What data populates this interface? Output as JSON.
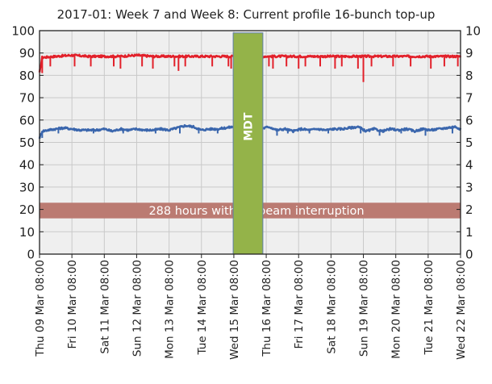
{
  "chart_data": {
    "type": "line",
    "title": "2017-01: Week 7 and Week 8: Current profile 16-bunch top-up",
    "y_left": {
      "range": [
        0,
        100
      ],
      "ticks": [
        "0",
        "10",
        "20",
        "30",
        "40",
        "50",
        "60",
        "70",
        "80",
        "90",
        "100"
      ]
    },
    "y_right": {
      "range": [
        0,
        10
      ],
      "ticks": [
        "0",
        "1",
        "2",
        "3",
        "4",
        "5",
        "6",
        "7",
        "8",
        "9",
        "10"
      ]
    },
    "x": {
      "unit": "hours",
      "range": [
        0,
        312
      ],
      "tick_labels": [
        "Thu 09 Mar 08:00",
        "Fri 10 Mar 08:00",
        "Sat 11  Mar 08:00",
        "Sun 12  Mar 08:00",
        "Mon 13  Mar 08:00",
        "Tue 14  Mar 08:00",
        "Wed 15 Mar 08:00",
        "Thu 16 Mar 08:00",
        "Fri 17 Mar 08:00",
        "Sat 18 Mar 08:00",
        "Sun 19 Mar 08:00",
        "Mon 20 Mar 08:00",
        "Tue 21 Mar 08:00",
        "Wed 22 Mar 08:00"
      ]
    },
    "series": [
      {
        "color": "#e2202a",
        "axis": "left",
        "points": [
          [
            0,
            81
          ],
          [
            2,
            88
          ],
          [
            12,
            88.5
          ],
          [
            24,
            89
          ],
          [
            36,
            88.5
          ],
          [
            48,
            88.5
          ],
          [
            60,
            88.5
          ],
          [
            72,
            89
          ],
          [
            84,
            88.5
          ],
          [
            96,
            88.5
          ],
          [
            108,
            88.5
          ],
          [
            120,
            88.5
          ],
          [
            144,
            88.5
          ],
          [
            156,
            88.5
          ],
          [
            168,
            88.5
          ],
          [
            180,
            88.5
          ],
          [
            192,
            88.5
          ],
          [
            204,
            88.5
          ],
          [
            216,
            88.5
          ],
          [
            228,
            88.5
          ],
          [
            240,
            88.5
          ],
          [
            252,
            88.5
          ],
          [
            264,
            88.5
          ],
          [
            276,
            88.5
          ],
          [
            288,
            88.5
          ],
          [
            300,
            88.5
          ],
          [
            312,
            88.5
          ]
        ],
        "dips": [
          [
            2,
            81
          ],
          [
            8,
            84
          ],
          [
            26,
            84
          ],
          [
            38,
            84
          ],
          [
            55,
            84
          ],
          [
            60,
            83
          ],
          [
            76,
            84
          ],
          [
            84,
            83
          ],
          [
            100,
            84
          ],
          [
            103,
            82
          ],
          [
            108,
            84
          ],
          [
            128,
            84
          ],
          [
            140,
            84
          ],
          [
            142,
            83
          ],
          [
            146,
            84
          ],
          [
            170,
            84
          ],
          [
            173,
            83
          ],
          [
            183,
            84
          ],
          [
            192,
            83
          ],
          [
            197,
            84
          ],
          [
            208,
            84
          ],
          [
            219,
            83
          ],
          [
            224,
            84
          ],
          [
            236,
            83
          ],
          [
            240,
            77
          ],
          [
            246,
            84
          ],
          [
            262,
            84
          ],
          [
            275,
            84
          ],
          [
            290,
            83
          ],
          [
            300,
            84
          ],
          [
            310,
            84
          ]
        ]
      },
      {
        "color": "#3a66ad",
        "axis": "left",
        "points": [
          [
            0,
            52
          ],
          [
            2,
            55
          ],
          [
            6,
            55.5
          ],
          [
            12,
            56
          ],
          [
            18,
            56.5
          ],
          [
            24,
            56
          ],
          [
            30,
            55.5
          ],
          [
            36,
            55.5
          ],
          [
            42,
            55.5
          ],
          [
            48,
            56
          ],
          [
            54,
            55
          ],
          [
            60,
            56
          ],
          [
            66,
            55.5
          ],
          [
            72,
            56
          ],
          [
            78,
            55.5
          ],
          [
            84,
            55.5
          ],
          [
            90,
            56
          ],
          [
            96,
            55.5
          ],
          [
            102,
            56.5
          ],
          [
            108,
            57.5
          ],
          [
            114,
            57
          ],
          [
            120,
            55.5
          ],
          [
            126,
            56
          ],
          [
            132,
            56
          ],
          [
            138,
            56.5
          ],
          [
            144,
            57
          ],
          [
            164,
            56
          ],
          [
            170,
            57
          ],
          [
            176,
            55.5
          ],
          [
            182,
            56
          ],
          [
            188,
            55
          ],
          [
            194,
            56
          ],
          [
            200,
            55.5
          ],
          [
            206,
            56
          ],
          [
            212,
            55.5
          ],
          [
            218,
            56
          ],
          [
            224,
            56
          ],
          [
            230,
            56.5
          ],
          [
            236,
            57
          ],
          [
            242,
            55
          ],
          [
            248,
            56
          ],
          [
            254,
            55
          ],
          [
            260,
            56
          ],
          [
            266,
            55.5
          ],
          [
            272,
            56
          ],
          [
            278,
            55
          ],
          [
            284,
            56
          ],
          [
            290,
            55.5
          ],
          [
            296,
            56
          ],
          [
            302,
            56.5
          ],
          [
            308,
            57
          ],
          [
            312,
            56
          ]
        ],
        "dips": [
          [
            2,
            52
          ],
          [
            14,
            54
          ],
          [
            40,
            54
          ],
          [
            62,
            54
          ],
          [
            86,
            54
          ],
          [
            104,
            54
          ],
          [
            118,
            54
          ],
          [
            132,
            54
          ],
          [
            176,
            53
          ],
          [
            184,
            54
          ],
          [
            200,
            54
          ],
          [
            214,
            54
          ],
          [
            238,
            54
          ],
          [
            252,
            53
          ],
          [
            268,
            54
          ],
          [
            286,
            53
          ],
          [
            306,
            54
          ]
        ]
      }
    ],
    "annotations": [
      {
        "type": "shaded_band",
        "label": "MDT",
        "color": "#94b349",
        "x_range": [
          143.5,
          165.5
        ],
        "y_range": [
          0,
          99
        ]
      },
      {
        "type": "horizontal_band",
        "label": "288 hours with no beam interruption",
        "color": "#bb7b72",
        "y_range": [
          16,
          23
        ],
        "x_range": [
          0,
          312
        ]
      }
    ],
    "colors": {
      "plot_background": "#efefef",
      "grid": "#c9c9c9",
      "axis": "#222222"
    },
    "grid": true
  }
}
